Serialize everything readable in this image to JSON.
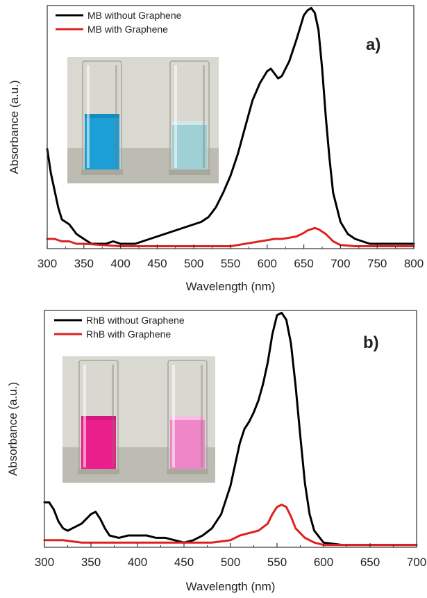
{
  "chart_data": [
    {
      "type": "line",
      "panel_label": "a)",
      "xlabel": "Wavelength (nm)",
      "ylabel": "Absorbance (a.u.)",
      "xlim": [
        300,
        800
      ],
      "ylim": [
        0,
        1
      ],
      "xticks": [
        300,
        350,
        400,
        450,
        500,
        550,
        600,
        650,
        700,
        750,
        800
      ],
      "legend_position": "top-left",
      "inset": "photo-of-cuvettes-blue",
      "series": [
        {
          "name": "MB without Graphene",
          "color": "#000000",
          "x": [
            300,
            305,
            310,
            315,
            320,
            325,
            330,
            335,
            340,
            345,
            350,
            360,
            370,
            380,
            390,
            400,
            410,
            420,
            430,
            440,
            450,
            460,
            470,
            480,
            490,
            500,
            510,
            520,
            530,
            540,
            550,
            560,
            570,
            580,
            590,
            600,
            605,
            610,
            615,
            620,
            625,
            630,
            640,
            650,
            655,
            660,
            665,
            670,
            675,
            680,
            685,
            690,
            700,
            710,
            720,
            730,
            740,
            750,
            760,
            770,
            780,
            790,
            800
          ],
          "y": [
            0.41,
            0.31,
            0.24,
            0.17,
            0.12,
            0.11,
            0.1,
            0.08,
            0.06,
            0.05,
            0.04,
            0.02,
            0.02,
            0.02,
            0.03,
            0.02,
            0.02,
            0.02,
            0.03,
            0.04,
            0.05,
            0.06,
            0.07,
            0.08,
            0.09,
            0.1,
            0.11,
            0.13,
            0.17,
            0.23,
            0.3,
            0.39,
            0.5,
            0.61,
            0.68,
            0.73,
            0.74,
            0.72,
            0.7,
            0.71,
            0.74,
            0.77,
            0.86,
            0.96,
            0.98,
            0.99,
            0.97,
            0.9,
            0.74,
            0.54,
            0.37,
            0.23,
            0.11,
            0.06,
            0.04,
            0.03,
            0.02,
            0.02,
            0.02,
            0.02,
            0.02,
            0.02,
            0.02
          ]
        },
        {
          "name": "MB with Graphene",
          "color": "#e02020",
          "x": [
            300,
            310,
            320,
            330,
            340,
            350,
            400,
            450,
            500,
            550,
            560,
            570,
            580,
            590,
            600,
            610,
            620,
            630,
            640,
            650,
            655,
            660,
            665,
            670,
            680,
            690,
            700,
            720,
            750,
            800
          ],
          "y": [
            0.04,
            0.04,
            0.03,
            0.03,
            0.02,
            0.02,
            0.01,
            0.01,
            0.01,
            0.01,
            0.015,
            0.02,
            0.025,
            0.03,
            0.035,
            0.04,
            0.04,
            0.045,
            0.05,
            0.065,
            0.075,
            0.08,
            0.085,
            0.08,
            0.06,
            0.03,
            0.015,
            0.01,
            0.01,
            0.01
          ]
        }
      ]
    },
    {
      "type": "line",
      "panel_label": "b)",
      "xlabel": "Wavelength (nm)",
      "ylabel": "Absorbance (a.u.)",
      "xlim": [
        300,
        700
      ],
      "ylim": [
        0,
        1
      ],
      "xticks": [
        300,
        350,
        400,
        450,
        500,
        550,
        600,
        650,
        700
      ],
      "legend_position": "top-left",
      "inset": "photo-of-cuvettes-pink",
      "series": [
        {
          "name": "RhB without Graphene",
          "color": "#000000",
          "x": [
            300,
            305,
            310,
            315,
            320,
            325,
            330,
            335,
            340,
            345,
            350,
            355,
            360,
            365,
            370,
            380,
            390,
            400,
            410,
            420,
            430,
            440,
            450,
            460,
            470,
            480,
            490,
            500,
            505,
            510,
            515,
            520,
            525,
            530,
            535,
            540,
            545,
            550,
            555,
            560,
            565,
            570,
            575,
            580,
            585,
            590,
            600,
            620,
            650,
            700
          ],
          "y": [
            0.19,
            0.19,
            0.16,
            0.11,
            0.08,
            0.07,
            0.08,
            0.09,
            0.1,
            0.12,
            0.14,
            0.15,
            0.12,
            0.08,
            0.05,
            0.04,
            0.05,
            0.05,
            0.05,
            0.04,
            0.04,
            0.03,
            0.02,
            0.03,
            0.05,
            0.08,
            0.14,
            0.26,
            0.35,
            0.44,
            0.5,
            0.53,
            0.57,
            0.62,
            0.69,
            0.78,
            0.9,
            0.98,
            0.99,
            0.96,
            0.86,
            0.68,
            0.47,
            0.27,
            0.14,
            0.07,
            0.02,
            0.01,
            0.01,
            0.01
          ],
          "y_note": "relative"
        },
        {
          "name": "RhB with Graphene",
          "color": "#e02020",
          "x": [
            300,
            320,
            340,
            360,
            400,
            450,
            480,
            500,
            510,
            520,
            530,
            540,
            545,
            550,
            555,
            560,
            565,
            570,
            580,
            590,
            600,
            650,
            700
          ],
          "y": [
            0.03,
            0.03,
            0.02,
            0.02,
            0.02,
            0.02,
            0.02,
            0.03,
            0.05,
            0.06,
            0.07,
            0.1,
            0.14,
            0.17,
            0.18,
            0.17,
            0.13,
            0.08,
            0.04,
            0.02,
            0.01,
            0.01,
            0.01
          ]
        }
      ]
    }
  ]
}
